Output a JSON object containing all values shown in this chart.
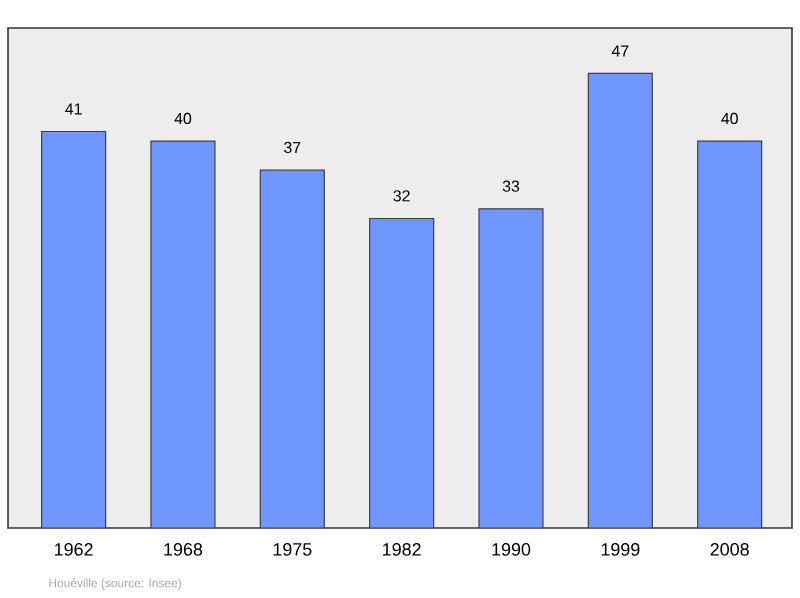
{
  "chart_data": {
    "type": "bar",
    "categories": [
      "1962",
      "1968",
      "1975",
      "1982",
      "1990",
      "1999",
      "2008"
    ],
    "values": [
      41,
      40,
      37,
      32,
      33,
      47,
      40
    ],
    "color": "#6f96ff",
    "data_labels": true,
    "annotations": [
      "Houéville    (source: Insee)"
    ]
  }
}
